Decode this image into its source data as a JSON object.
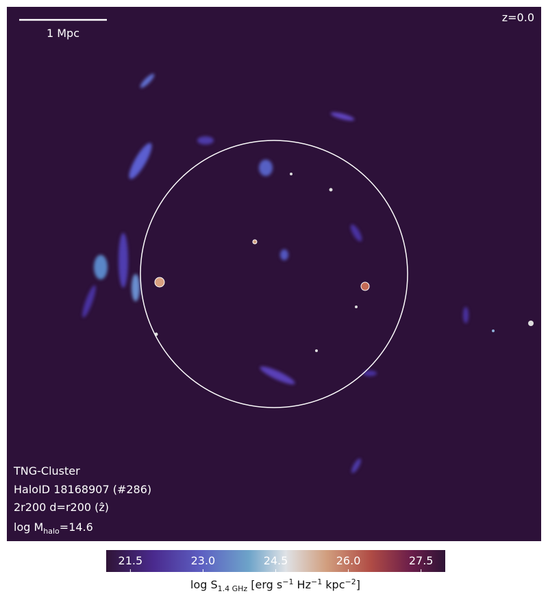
{
  "image": {
    "scale_bar": "1 Mpc",
    "redshift": "z=0.0",
    "info": [
      "TNG-Cluster",
      "HaloID 18168907 (#286)",
      "2r200 d=r200 (ẑ)"
    ],
    "mass_label": [
      "log M",
      "halo",
      "=14.6"
    ]
  },
  "colorbar": {
    "lim": [
      21,
      28
    ],
    "ticks": [
      {
        "value": 21.5,
        "label": "21.5"
      },
      {
        "value": 23,
        "label": "23.0"
      },
      {
        "value": 24.5,
        "label": "24.5"
      },
      {
        "value": 26,
        "label": "26.0"
      },
      {
        "value": 27.5,
        "label": "27.5"
      }
    ],
    "label": [
      "log S",
      "1.4 GHz",
      " [erg s",
      "−1",
      " Hz",
      "−1",
      " kpc",
      "−2",
      "]"
    ]
  }
}
